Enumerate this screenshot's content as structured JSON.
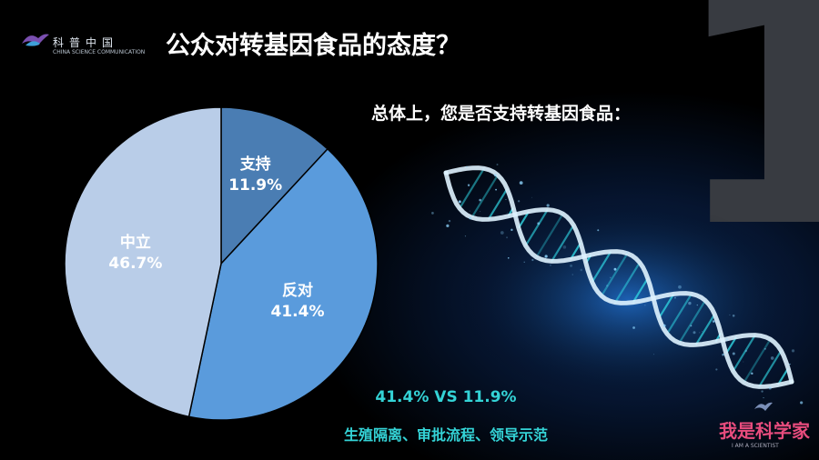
{
  "brand": {
    "name": "科普中国",
    "subtitle": "CHINA SCIENCE COMMUNICATION",
    "corner_logo": "我是科学家",
    "corner_logo_en": "I AM A SCIENTIST"
  },
  "slide": {
    "number": "1",
    "title": "公众对转基因食品的态度？",
    "question": "总体上，您是否支持转基因食品：",
    "comparison": "41.4% VS 11.9%",
    "reasons": "生殖隔离、审批流程、领导示范"
  },
  "chart_data": {
    "type": "pie",
    "start_angle": "12 o'clock, clockwise",
    "slices": [
      {
        "label": "支持",
        "value": 11.9,
        "display": "11.9%",
        "color": "#4a7db3"
      },
      {
        "label": "反对",
        "value": 41.4,
        "display": "41.4%",
        "color": "#5a9bdc"
      },
      {
        "label": "中立",
        "value": 46.7,
        "display": "46.7%",
        "color": "#b9cde8"
      }
    ]
  },
  "colors": {
    "accent": "#34d3d6",
    "big_number": "#383b41"
  }
}
